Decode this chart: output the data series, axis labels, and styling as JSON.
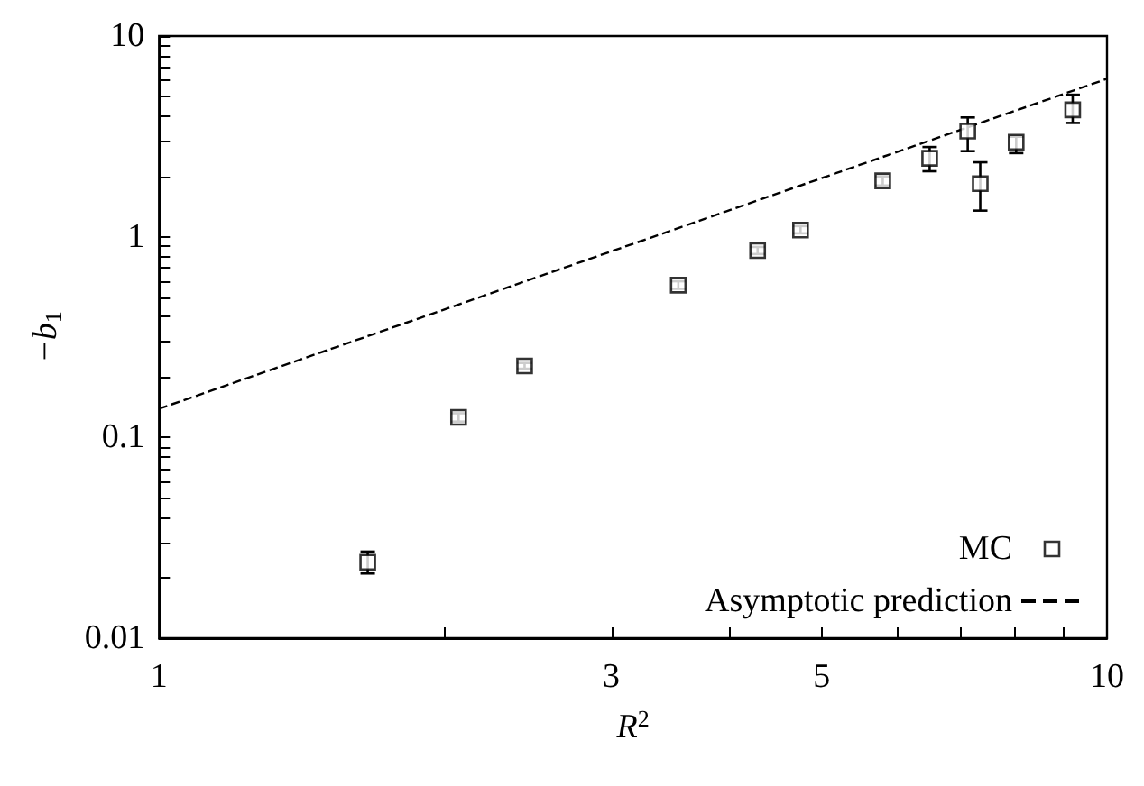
{
  "chart_data": {
    "type": "scatter",
    "xlabel": "R$^{2}$",
    "ylabel": "−b$_{1}$",
    "log": "xy",
    "grid": false,
    "legend": "bottom right",
    "marker": "square",
    "xlim": [
      1,
      10
    ],
    "ylim": [
      0.01,
      10
    ],
    "xticks": [
      1,
      {
        "value": 2,
        "label": null
      },
      3,
      {
        "value": 4,
        "label": null
      },
      5,
      {
        "value": 6,
        "label": null
      },
      {
        "value": 7,
        "label": null
      },
      {
        "value": 8,
        "label": null
      },
      {
        "value": 9,
        "label": null
      },
      10
    ],
    "yticks": [
      0.01,
      {
        "value": 0.02,
        "label": null
      },
      {
        "value": 0.03,
        "label": null
      },
      {
        "value": 0.04,
        "label": null
      },
      {
        "value": 0.05,
        "label": null
      },
      {
        "value": 0.06,
        "label": null
      },
      {
        "value": 0.07,
        "label": null
      },
      {
        "value": 0.08,
        "label": null
      },
      {
        "value": 0.09,
        "label": null
      },
      0.1,
      {
        "value": 0.2,
        "label": null
      },
      {
        "value": 0.3,
        "label": null
      },
      {
        "value": 0.4,
        "label": null
      },
      {
        "value": 0.5,
        "label": null
      },
      {
        "value": 0.6,
        "label": null
      },
      {
        "value": 0.7,
        "label": null
      },
      {
        "value": 0.8,
        "label": null
      },
      {
        "value": 0.9,
        "label": null
      },
      1,
      {
        "value": 2,
        "label": null
      },
      {
        "value": 3,
        "label": null
      },
      {
        "value": 4,
        "label": null
      },
      {
        "value": 5,
        "label": null
      },
      {
        "value": 6,
        "label": null
      },
      {
        "value": 7,
        "label": null
      },
      {
        "value": 8,
        "label": null
      },
      {
        "value": 9,
        "label": null
      },
      10
    ],
    "series": [
      {
        "name": "MC",
        "type": "scatter",
        "color": "#000000",
        "x": [
          1.66,
          2.07,
          2.43,
          3.53,
          4.28,
          4.75,
          5.8,
          6.5,
          7.13,
          7.35,
          8.02,
          9.2
        ],
        "values": [
          0.0239,
          0.126,
          0.227,
          0.574,
          0.853,
          1.08,
          1.9,
          2.46,
          3.36,
          1.84,
          2.96,
          4.29
        ],
        "errors": [
          [
            0.021,
            0.027
          ],
          [
            0.12,
            0.132
          ],
          [
            0.22,
            0.235
          ],
          [
            0.55,
            0.6
          ],
          [
            0.82,
            0.89
          ],
          [
            1.04,
            1.13
          ],
          [
            1.8,
            2.0
          ],
          [
            2.12,
            2.8
          ],
          [
            2.67,
            3.93
          ],
          [
            1.35,
            2.35
          ],
          [
            2.61,
            3.15
          ],
          [
            3.69,
            5.1
          ]
        ]
      },
      {
        "name": "Asymptotic prediction",
        "type": "line",
        "color": "#000000",
        "line_style": "dashed",
        "marker": "none",
        "x": [
          1,
          10
        ],
        "values": [
          0.139,
          6.12
        ]
      }
    ]
  }
}
